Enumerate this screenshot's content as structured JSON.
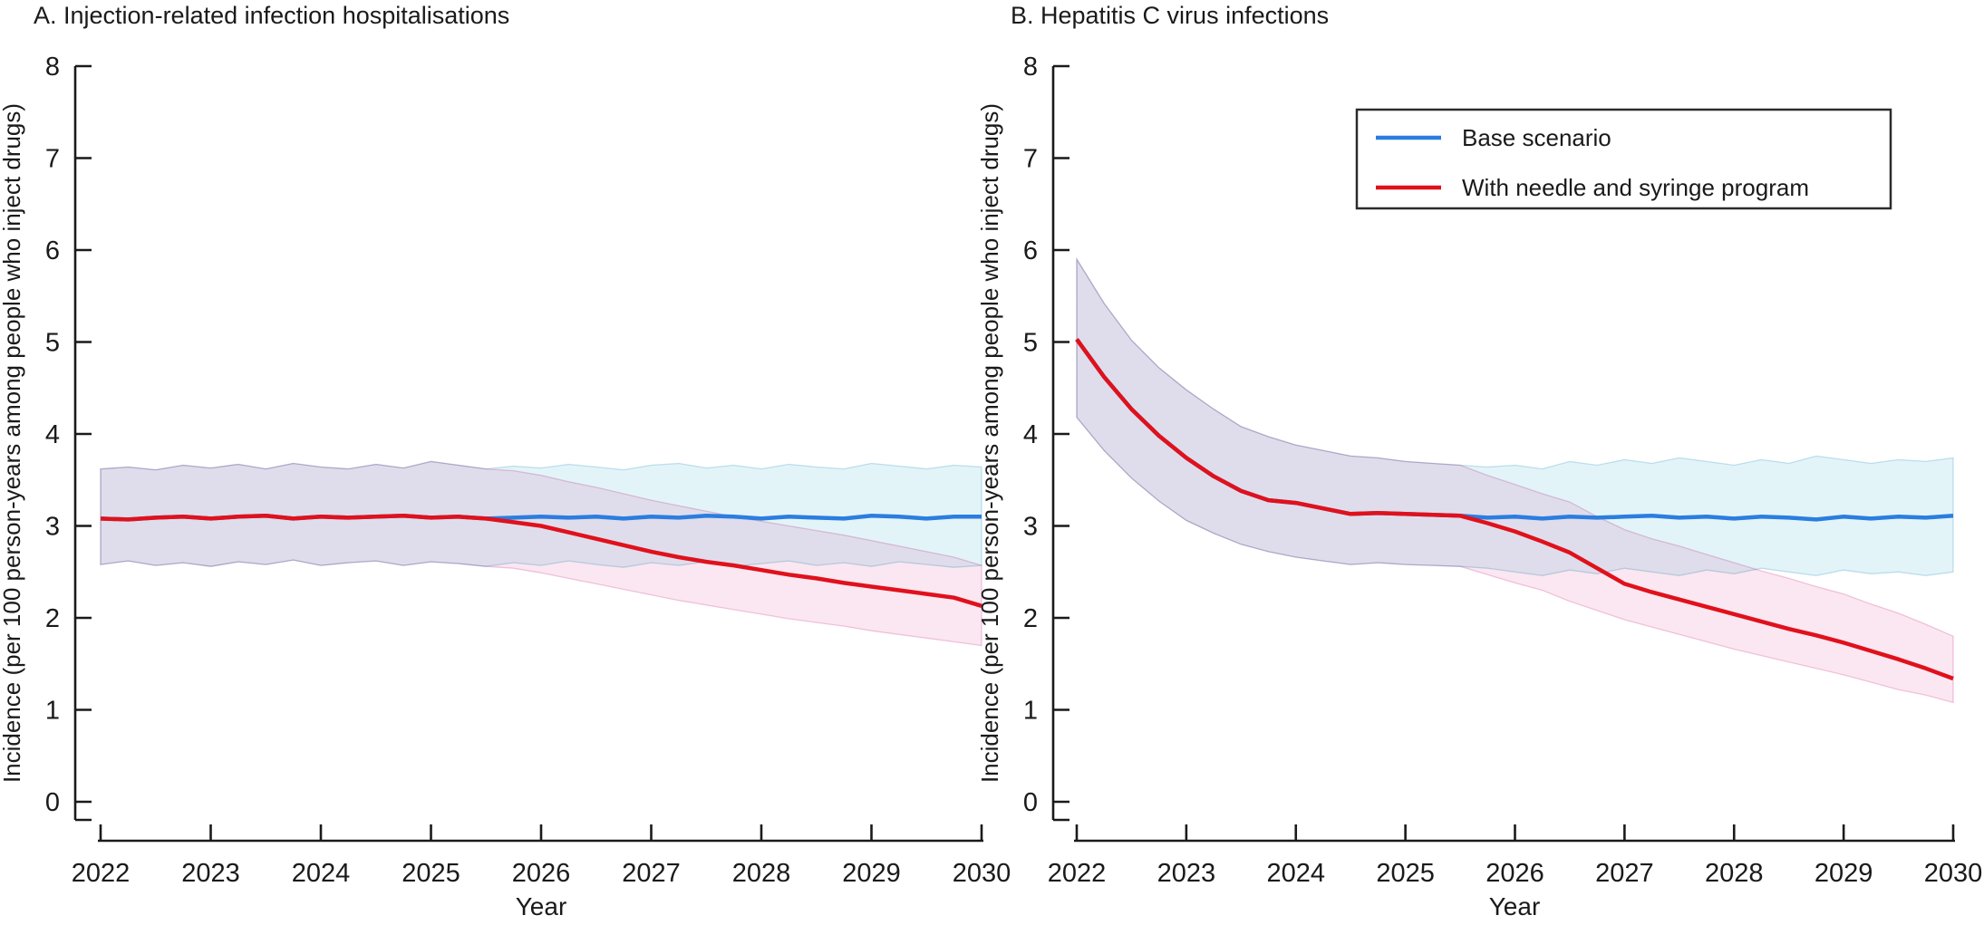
{
  "legend": {
    "position": "top-right-panel-B",
    "entries": [
      {
        "label": "Base scenario",
        "color": "#2B7DE0"
      },
      {
        "label": "With needle and syringe program",
        "color": "#E0111C"
      }
    ]
  },
  "chart_data": [
    {
      "type": "line",
      "panel": "A",
      "title": "A. Injection-related infection hospitalisations",
      "xlabel": "Year",
      "ylabel": "Incidence (per 100 person-years among people who inject drugs)",
      "xlim": [
        2022,
        2030
      ],
      "ylim": [
        0,
        8
      ],
      "x_ticks": [
        2022,
        2023,
        2024,
        2025,
        2026,
        2027,
        2028,
        2029,
        2030
      ],
      "y_ticks": [
        0,
        1,
        2,
        3,
        4,
        5,
        6,
        7,
        8
      ],
      "grid": false,
      "x": [
        2022,
        2022.25,
        2022.5,
        2022.75,
        2023,
        2023.25,
        2023.5,
        2023.75,
        2024,
        2024.25,
        2024.5,
        2024.75,
        2025,
        2025.25,
        2025.5,
        2025.75,
        2026,
        2026.25,
        2026.5,
        2026.75,
        2027,
        2027.25,
        2027.5,
        2027.75,
        2028,
        2028.25,
        2028.5,
        2028.75,
        2029,
        2029.25,
        2029.5,
        2029.75,
        2030
      ],
      "series": [
        {
          "name": "Base scenario",
          "color": "#2B7DE0",
          "band_color": "#E3F4F9",
          "band_edge": "rgba(90,170,200,0.35)",
          "values": [
            3.08,
            3.07,
            3.09,
            3.1,
            3.08,
            3.1,
            3.11,
            3.08,
            3.1,
            3.09,
            3.1,
            3.11,
            3.09,
            3.1,
            3.08,
            3.09,
            3.1,
            3.09,
            3.1,
            3.08,
            3.1,
            3.09,
            3.11,
            3.1,
            3.08,
            3.1,
            3.09,
            3.08,
            3.11,
            3.1,
            3.08,
            3.1,
            3.1
          ],
          "upper": [
            3.62,
            3.64,
            3.61,
            3.66,
            3.63,
            3.67,
            3.62,
            3.68,
            3.64,
            3.62,
            3.67,
            3.63,
            3.7,
            3.66,
            3.62,
            3.65,
            3.63,
            3.67,
            3.64,
            3.61,
            3.66,
            3.68,
            3.63,
            3.66,
            3.62,
            3.67,
            3.64,
            3.62,
            3.68,
            3.65,
            3.62,
            3.66,
            3.64
          ],
          "lower": [
            2.58,
            2.62,
            2.57,
            2.6,
            2.56,
            2.61,
            2.58,
            2.63,
            2.57,
            2.6,
            2.62,
            2.57,
            2.61,
            2.59,
            2.56,
            2.6,
            2.57,
            2.62,
            2.58,
            2.55,
            2.6,
            2.57,
            2.61,
            2.56,
            2.59,
            2.62,
            2.57,
            2.6,
            2.56,
            2.61,
            2.58,
            2.55,
            2.57
          ]
        },
        {
          "name": "With needle and syringe program",
          "color": "#E0111C",
          "band_color": "#FBE7F1",
          "band_edge": "rgba(215,100,160,0.35)",
          "values": [
            3.08,
            3.07,
            3.09,
            3.1,
            3.08,
            3.1,
            3.11,
            3.08,
            3.1,
            3.09,
            3.1,
            3.11,
            3.09,
            3.1,
            3.08,
            3.04,
            3.0,
            2.93,
            2.86,
            2.79,
            2.72,
            2.66,
            2.61,
            2.57,
            2.52,
            2.47,
            2.43,
            2.38,
            2.34,
            2.3,
            2.26,
            2.22,
            2.13
          ],
          "upper": [
            3.62,
            3.64,
            3.61,
            3.66,
            3.63,
            3.67,
            3.62,
            3.68,
            3.64,
            3.62,
            3.67,
            3.63,
            3.7,
            3.66,
            3.62,
            3.6,
            3.55,
            3.48,
            3.42,
            3.35,
            3.28,
            3.22,
            3.16,
            3.1,
            3.05,
            3.0,
            2.95,
            2.9,
            2.84,
            2.78,
            2.72,
            2.66,
            2.57
          ],
          "lower": [
            2.58,
            2.62,
            2.57,
            2.6,
            2.56,
            2.61,
            2.58,
            2.63,
            2.57,
            2.6,
            2.62,
            2.57,
            2.61,
            2.59,
            2.56,
            2.54,
            2.49,
            2.43,
            2.37,
            2.31,
            2.25,
            2.19,
            2.14,
            2.09,
            2.04,
            1.99,
            1.95,
            1.91,
            1.86,
            1.82,
            1.78,
            1.74,
            1.7
          ]
        }
      ]
    },
    {
      "type": "line",
      "panel": "B",
      "title": "B. Hepatitis C virus infections",
      "xlabel": "Year",
      "ylabel": "Incidence (per 100 person-years among people who inject drugs)",
      "xlim": [
        2022,
        2030
      ],
      "ylim": [
        0,
        8
      ],
      "x_ticks": [
        2022,
        2023,
        2024,
        2025,
        2026,
        2027,
        2028,
        2029,
        2030
      ],
      "y_ticks": [
        0,
        1,
        2,
        3,
        4,
        5,
        6,
        7,
        8
      ],
      "grid": false,
      "x": [
        2022,
        2022.25,
        2022.5,
        2022.75,
        2023,
        2023.25,
        2023.5,
        2023.75,
        2024,
        2024.25,
        2024.5,
        2024.75,
        2025,
        2025.25,
        2025.5,
        2025.75,
        2026,
        2026.25,
        2026.5,
        2026.75,
        2027,
        2027.25,
        2027.5,
        2027.75,
        2028,
        2028.25,
        2028.5,
        2028.75,
        2029,
        2029.25,
        2029.5,
        2029.75,
        2030
      ],
      "series": [
        {
          "name": "Base scenario",
          "color": "#2B7DE0",
          "band_color": "#E3F4F9",
          "band_edge": "rgba(90,170,200,0.35)",
          "values": [
            5.03,
            4.62,
            4.27,
            3.98,
            3.74,
            3.54,
            3.38,
            3.28,
            3.25,
            3.19,
            3.13,
            3.14,
            3.13,
            3.12,
            3.11,
            3.09,
            3.1,
            3.08,
            3.1,
            3.09,
            3.1,
            3.11,
            3.09,
            3.1,
            3.08,
            3.1,
            3.09,
            3.07,
            3.1,
            3.08,
            3.1,
            3.09,
            3.11
          ],
          "upper": [
            5.9,
            5.42,
            5.02,
            4.72,
            4.48,
            4.27,
            4.08,
            3.97,
            3.88,
            3.82,
            3.76,
            3.74,
            3.7,
            3.68,
            3.66,
            3.64,
            3.66,
            3.62,
            3.7,
            3.66,
            3.72,
            3.68,
            3.74,
            3.7,
            3.66,
            3.72,
            3.68,
            3.76,
            3.72,
            3.68,
            3.72,
            3.7,
            3.74
          ],
          "lower": [
            4.18,
            3.82,
            3.52,
            3.27,
            3.06,
            2.92,
            2.8,
            2.72,
            2.66,
            2.62,
            2.58,
            2.6,
            2.58,
            2.57,
            2.56,
            2.54,
            2.5,
            2.46,
            2.52,
            2.48,
            2.54,
            2.5,
            2.46,
            2.52,
            2.48,
            2.54,
            2.5,
            2.46,
            2.52,
            2.48,
            2.5,
            2.46,
            2.5
          ]
        },
        {
          "name": "With needle and syringe program",
          "color": "#E0111C",
          "band_color": "#FBE7F1",
          "band_edge": "rgba(215,100,160,0.35)",
          "values": [
            5.03,
            4.62,
            4.27,
            3.98,
            3.74,
            3.54,
            3.38,
            3.28,
            3.25,
            3.19,
            3.13,
            3.14,
            3.13,
            3.12,
            3.11,
            3.03,
            2.94,
            2.83,
            2.71,
            2.54,
            2.37,
            2.28,
            2.2,
            2.12,
            2.04,
            1.96,
            1.88,
            1.81,
            1.73,
            1.64,
            1.55,
            1.45,
            1.34
          ],
          "upper": [
            5.9,
            5.42,
            5.02,
            4.72,
            4.48,
            4.27,
            4.08,
            3.97,
            3.88,
            3.82,
            3.76,
            3.74,
            3.7,
            3.68,
            3.66,
            3.55,
            3.45,
            3.35,
            3.26,
            3.1,
            2.96,
            2.86,
            2.78,
            2.69,
            2.6,
            2.51,
            2.43,
            2.34,
            2.26,
            2.15,
            2.05,
            1.93,
            1.8
          ],
          "lower": [
            4.18,
            3.82,
            3.52,
            3.27,
            3.06,
            2.92,
            2.8,
            2.72,
            2.66,
            2.62,
            2.58,
            2.6,
            2.58,
            2.57,
            2.56,
            2.47,
            2.38,
            2.3,
            2.18,
            2.08,
            1.98,
            1.9,
            1.82,
            1.74,
            1.66,
            1.59,
            1.52,
            1.45,
            1.38,
            1.3,
            1.22,
            1.16,
            1.08
          ]
        }
      ]
    }
  ]
}
